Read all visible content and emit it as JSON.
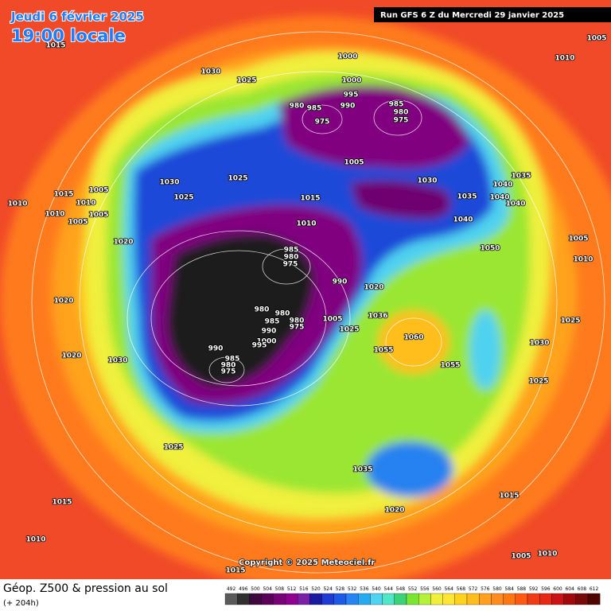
{
  "header": {
    "date": "Jeudi 6 février 2025",
    "time": "19:00 locale",
    "run": "Run GFS 6 Z du Mercredi 29 janvier 2025"
  },
  "map": {
    "pressure_labels": [
      "1015",
      "1005",
      "1010",
      "1000",
      "1030",
      "1025",
      "1000",
      "995",
      "980",
      "985",
      "990",
      "985",
      "980",
      "975",
      "975",
      "1005",
      "1030",
      "1025",
      "1030",
      "1035",
      "1040",
      "1015",
      "1005",
      "1025",
      "1015",
      "1035",
      "1040",
      "1040",
      "1010",
      "1010",
      "1010",
      "1005",
      "1005",
      "1010",
      "1040",
      "985",
      "980",
      "975",
      "1020",
      "1005",
      "1050",
      "1010",
      "990",
      "1020",
      "1020",
      "980",
      "980",
      "985",
      "980",
      "975",
      "1005",
      "1036",
      "1025",
      "990",
      "1000",
      "995",
      "1025",
      "1060",
      "1055",
      "1030",
      "990",
      "985",
      "980",
      "975",
      "1020",
      "1030",
      "1055",
      "1025",
      "1025",
      "1035",
      "1015",
      "1015",
      "1020",
      "1010",
      "1005",
      "1010",
      "1015"
    ]
  },
  "copyright": "Copyright © 2025 Meteociel.fr",
  "footer": {
    "title": "Géop. Z500 & pression au sol",
    "subtitle": "(+ 204h)"
  },
  "color_scale": {
    "labels": [
      492,
      496,
      500,
      504,
      508,
      512,
      516,
      520,
      524,
      528,
      532,
      536,
      540,
      544,
      548,
      552,
      556,
      560,
      564,
      568,
      572,
      576,
      580,
      584,
      588,
      592,
      596,
      600,
      604,
      608,
      612
    ],
    "colors": [
      "#5a5a5a",
      "#303030",
      "#3c0a3c",
      "#5a005a",
      "#780078",
      "#900090",
      "#7a20a8",
      "#1a1aa0",
      "#1e3cd2",
      "#1e5ae6",
      "#2882f0",
      "#28aaf0",
      "#50d2f0",
      "#50e6c8",
      "#3cd278",
      "#78e632",
      "#b4f03c",
      "#f0f03c",
      "#ffe632",
      "#ffd21e",
      "#ffbe1e",
      "#ffa01e",
      "#ff8c1e",
      "#ff7814",
      "#ff5a14",
      "#f03c14",
      "#e62814",
      "#c81414",
      "#a00a0a",
      "#780a0a",
      "#500505"
    ]
  }
}
